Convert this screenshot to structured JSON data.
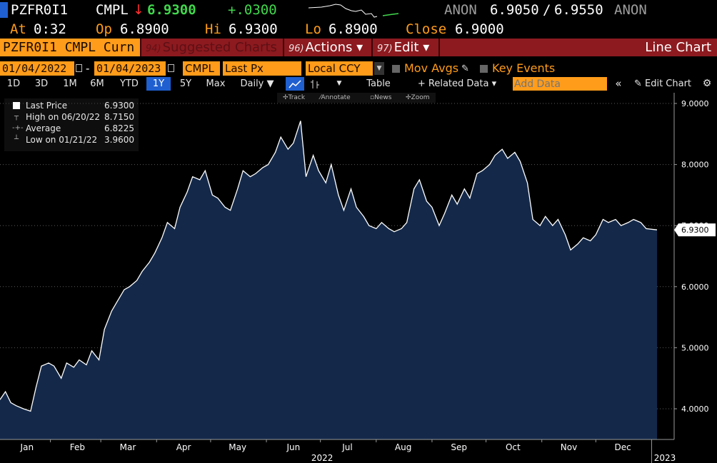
{
  "ticker_bar": {
    "ticker": "PZFR0I1",
    "cmpl": "CMPL",
    "arrow": "↓",
    "last": "6.9300",
    "change": "+.0300",
    "contributor_left": "ANON",
    "bid": "6.9050",
    "slash": "/",
    "ask": "6.9550",
    "contributor_right": "ANON"
  },
  "quote_bar": {
    "at_label": "At",
    "at_value": "0:32",
    "op_label": "Op",
    "op_value": "6.8900",
    "hi_label": "Hi",
    "hi_value": "6.9300",
    "lo_label": "Lo",
    "lo_value": "6.8900",
    "close_label": "Close",
    "close_value": "6.9000"
  },
  "menu_bar": {
    "security": "PZFR0I1 CMPL Curn",
    "suggested_num": "94)",
    "suggested": "Suggested Charts",
    "actions_num": "96)",
    "actions": "Actions ▾",
    "edit_num": "97)",
    "edit": "Edit ▾",
    "title": "Line Chart"
  },
  "settings_bar": {
    "start_date": "01/04/2022",
    "dash": "-",
    "end_date": "01/04/2023",
    "source": "CMPL",
    "field": "Last Px",
    "currency": "Local CCY",
    "mov_avgs": "Mov Avgs",
    "key_events": "Key Events"
  },
  "toolbar": {
    "periods": [
      "1D",
      "3D",
      "1M",
      "6M",
      "YTD",
      "1Y",
      "5Y",
      "Max"
    ],
    "active_period": "1Y",
    "frequency": "Daily ▼",
    "table": "Table",
    "related_data": "+ Related Data ▾",
    "add_data_placeholder": "Add Data",
    "edit_chart": "Edit Chart"
  },
  "sub_toolbar": {
    "track": "Track",
    "annotate": "Annotate",
    "news": "News",
    "zoom": "Zoom"
  },
  "legend": {
    "last_label": "Last Price",
    "last_value": "6.9300",
    "high_label": "High on 06/20/22",
    "high_value": "8.7150",
    "avg_label": "Average",
    "avg_value": "6.8225",
    "low_label": "Low on 01/21/22",
    "low_value": "3.9600"
  },
  "colors": {
    "orange": "#ff9c1a",
    "green": "#40d84c",
    "red": "#ff2e2e",
    "menu_red": "#8c1a1f",
    "area_fill": "#14294a",
    "active_blue": "#1f5fd0"
  },
  "chart_data": {
    "type": "area",
    "series": [
      {
        "name": "Last Price",
        "points": [
          [
            "2022-01-04",
            4.15
          ],
          [
            "2022-01-07",
            4.28
          ],
          [
            "2022-01-10",
            4.1
          ],
          [
            "2022-01-13",
            4.05
          ],
          [
            "2022-01-17",
            4.0
          ],
          [
            "2022-01-21",
            3.96
          ],
          [
            "2022-01-24",
            4.35
          ],
          [
            "2022-01-27",
            4.7
          ],
          [
            "2022-01-31",
            4.75
          ],
          [
            "2022-02-03",
            4.7
          ],
          [
            "2022-02-07",
            4.5
          ],
          [
            "2022-02-10",
            4.75
          ],
          [
            "2022-02-14",
            4.68
          ],
          [
            "2022-02-17",
            4.8
          ],
          [
            "2022-02-21",
            4.72
          ],
          [
            "2022-02-24",
            4.95
          ],
          [
            "2022-02-28",
            4.8
          ],
          [
            "2022-03-03",
            5.3
          ],
          [
            "2022-03-07",
            5.6
          ],
          [
            "2022-03-10",
            5.75
          ],
          [
            "2022-03-14",
            5.95
          ],
          [
            "2022-03-17",
            6.0
          ],
          [
            "2022-03-21",
            6.1
          ],
          [
            "2022-03-24",
            6.25
          ],
          [
            "2022-03-28",
            6.4
          ],
          [
            "2022-03-31",
            6.55
          ],
          [
            "2022-04-04",
            6.8
          ],
          [
            "2022-04-07",
            7.05
          ],
          [
            "2022-04-11",
            6.95
          ],
          [
            "2022-04-14",
            7.3
          ],
          [
            "2022-04-18",
            7.55
          ],
          [
            "2022-04-21",
            7.8
          ],
          [
            "2022-04-25",
            7.75
          ],
          [
            "2022-04-28",
            7.9
          ],
          [
            "2022-05-02",
            7.5
          ],
          [
            "2022-05-05",
            7.45
          ],
          [
            "2022-05-09",
            7.3
          ],
          [
            "2022-05-12",
            7.25
          ],
          [
            "2022-05-16",
            7.6
          ],
          [
            "2022-05-19",
            7.9
          ],
          [
            "2022-05-23",
            7.8
          ],
          [
            "2022-05-26",
            7.85
          ],
          [
            "2022-05-30",
            7.95
          ],
          [
            "2022-06-02",
            8.0
          ],
          [
            "2022-06-06",
            8.2
          ],
          [
            "2022-06-09",
            8.45
          ],
          [
            "2022-06-13",
            8.25
          ],
          [
            "2022-06-16",
            8.35
          ],
          [
            "2022-06-20",
            8.715
          ],
          [
            "2022-06-23",
            7.8
          ],
          [
            "2022-06-27",
            8.15
          ],
          [
            "2022-06-30",
            7.9
          ],
          [
            "2022-07-04",
            7.7
          ],
          [
            "2022-07-07",
            8.0
          ],
          [
            "2022-07-11",
            7.5
          ],
          [
            "2022-07-14",
            7.25
          ],
          [
            "2022-07-18",
            7.6
          ],
          [
            "2022-07-21",
            7.3
          ],
          [
            "2022-07-25",
            7.15
          ],
          [
            "2022-07-28",
            7.0
          ],
          [
            "2022-08-01",
            6.95
          ],
          [
            "2022-08-04",
            7.05
          ],
          [
            "2022-08-08",
            6.95
          ],
          [
            "2022-08-11",
            6.9
          ],
          [
            "2022-08-15",
            6.95
          ],
          [
            "2022-08-18",
            7.05
          ],
          [
            "2022-08-22",
            7.6
          ],
          [
            "2022-08-25",
            7.75
          ],
          [
            "2022-08-29",
            7.4
          ],
          [
            "2022-09-01",
            7.3
          ],
          [
            "2022-09-05",
            7.0
          ],
          [
            "2022-09-08",
            7.2
          ],
          [
            "2022-09-12",
            7.5
          ],
          [
            "2022-09-15",
            7.35
          ],
          [
            "2022-09-19",
            7.6
          ],
          [
            "2022-09-22",
            7.45
          ],
          [
            "2022-09-26",
            7.85
          ],
          [
            "2022-09-29",
            7.9
          ],
          [
            "2022-10-03",
            8.0
          ],
          [
            "2022-10-06",
            8.15
          ],
          [
            "2022-10-10",
            8.25
          ],
          [
            "2022-10-13",
            8.1
          ],
          [
            "2022-10-17",
            8.2
          ],
          [
            "2022-10-20",
            8.05
          ],
          [
            "2022-10-24",
            7.7
          ],
          [
            "2022-10-27",
            7.1
          ],
          [
            "2022-10-31",
            7.0
          ],
          [
            "2022-11-03",
            7.15
          ],
          [
            "2022-11-07",
            7.0
          ],
          [
            "2022-11-10",
            7.1
          ],
          [
            "2022-11-14",
            6.85
          ],
          [
            "2022-11-17",
            6.6
          ],
          [
            "2022-11-21",
            6.7
          ],
          [
            "2022-11-24",
            6.8
          ],
          [
            "2022-11-28",
            6.75
          ],
          [
            "2022-12-01",
            6.85
          ],
          [
            "2022-12-05",
            7.1
          ],
          [
            "2022-12-08",
            7.05
          ],
          [
            "2022-12-12",
            7.1
          ],
          [
            "2022-12-15",
            7.0
          ],
          [
            "2022-12-19",
            7.05
          ],
          [
            "2022-12-22",
            7.1
          ],
          [
            "2022-12-26",
            7.05
          ],
          [
            "2022-12-29",
            6.95
          ],
          [
            "2023-01-04",
            6.93
          ]
        ]
      }
    ],
    "ylim": [
      3.5,
      9.0
    ],
    "y_ticks": [
      "4.0000",
      "5.0000",
      "6.0000",
      "7.0000",
      "8.0000",
      "9.0000"
    ],
    "last_value_label": "6.9300",
    "x_tick_labels": [
      "Jan",
      "Feb",
      "Mar",
      "Apr",
      "May",
      "Jun",
      "Jul",
      "Aug",
      "Sep",
      "Oct",
      "Nov",
      "Dec",
      "2022",
      "2023"
    ],
    "grid": "horizontal dotted"
  }
}
